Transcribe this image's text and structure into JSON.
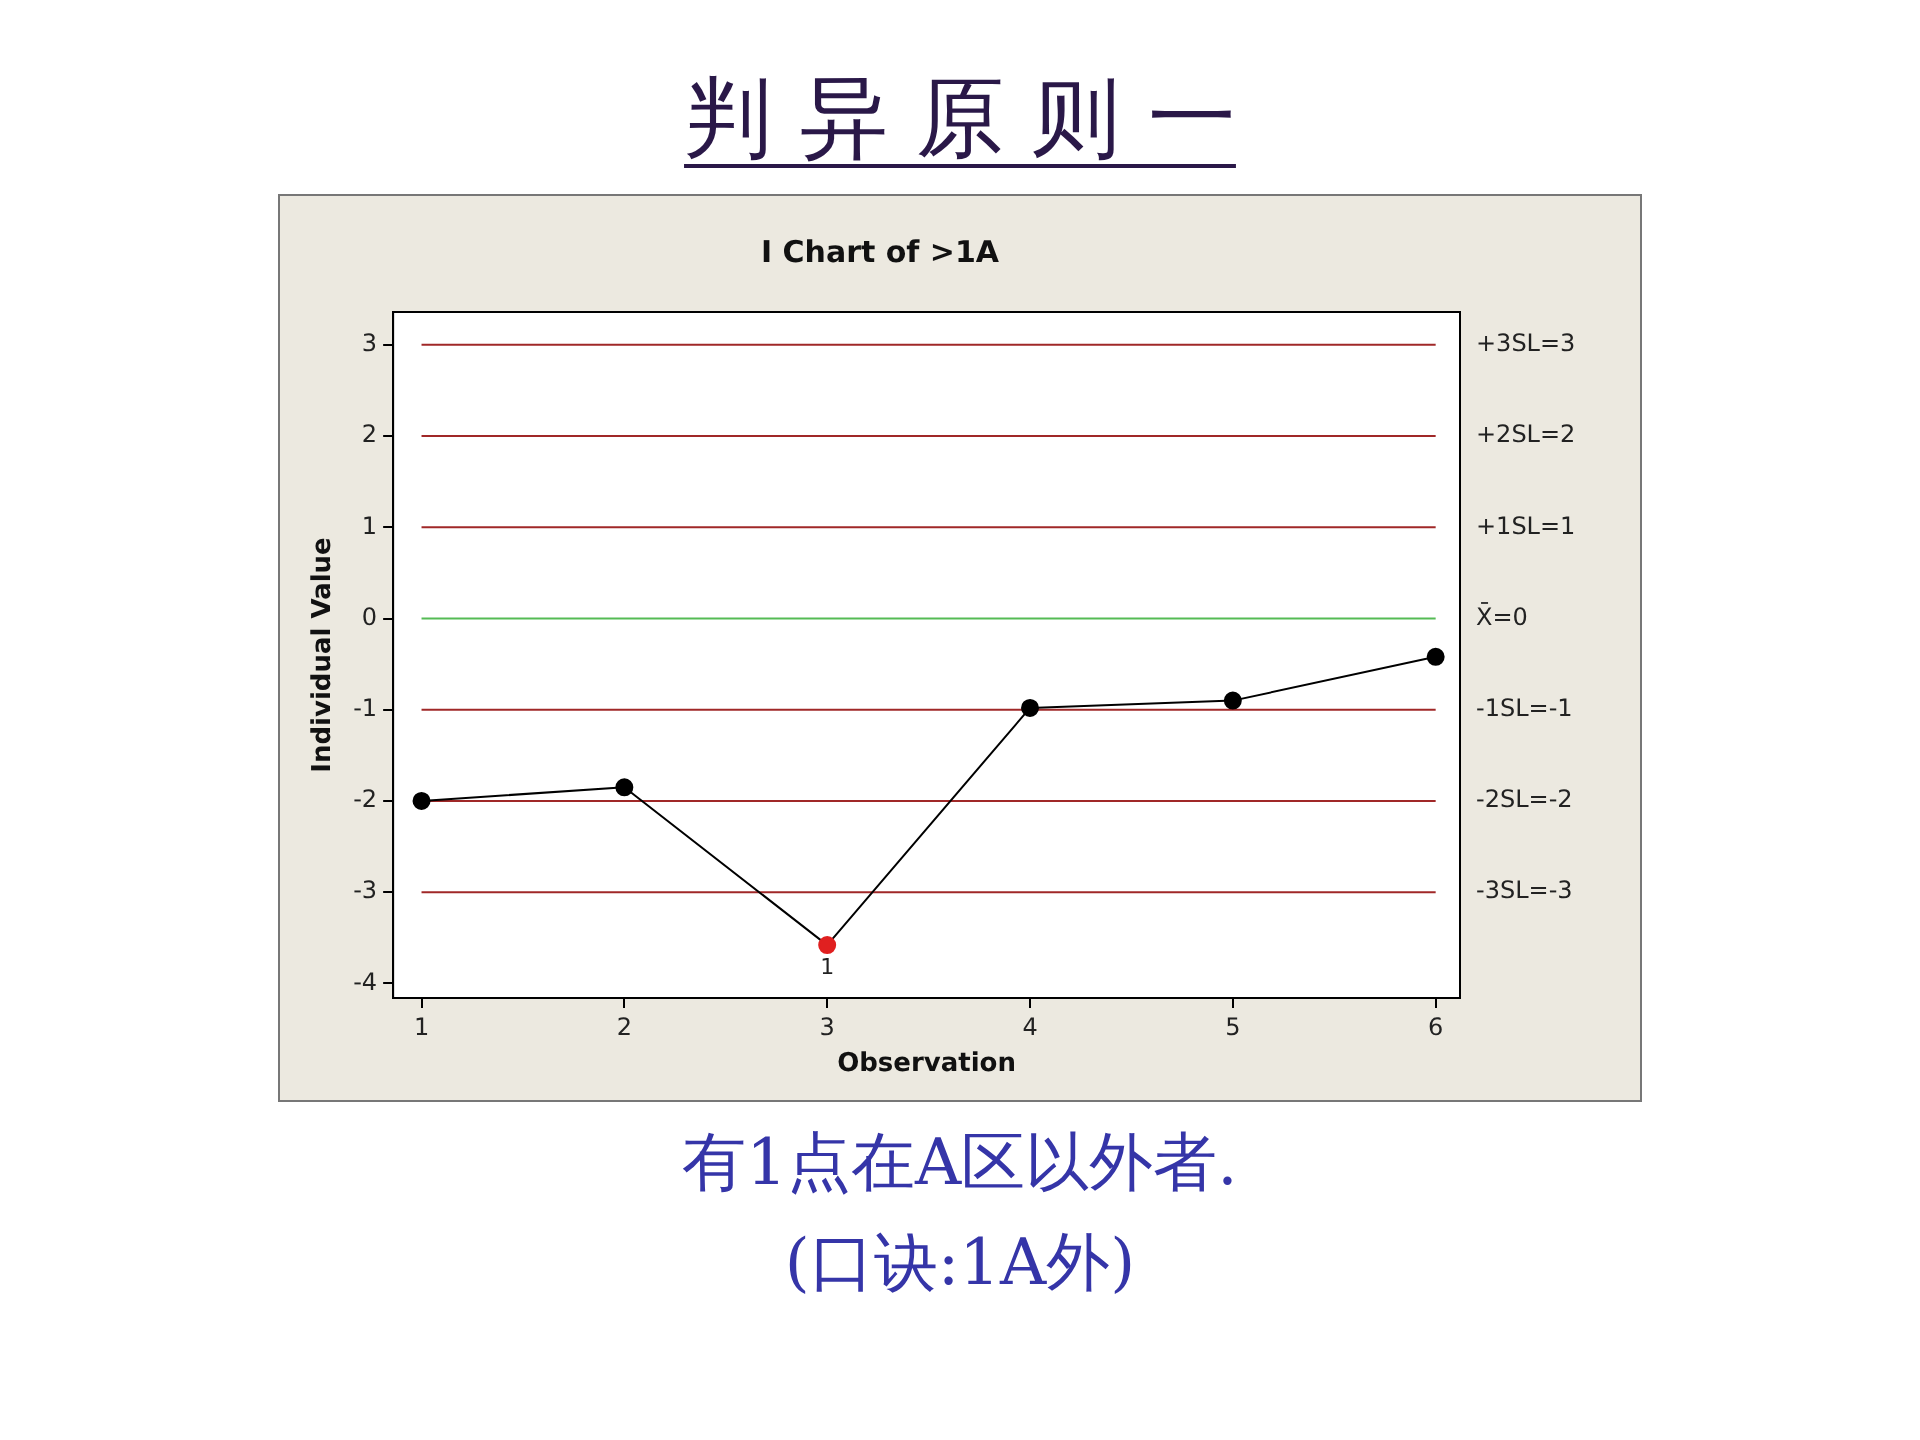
{
  "chart_data": {
    "type": "line",
    "title": "判 异 原 则 一",
    "subtitle": "I Chart of >1A",
    "xlabel": "Observation",
    "ylabel": "Individual Value",
    "x": [
      1,
      2,
      3,
      4,
      5,
      6
    ],
    "series": [
      {
        "color": "#000000",
        "colors": [
          "#000000",
          "#000000",
          "#e02020",
          "#000000",
          "#000000",
          "#000000"
        ],
        "values": [
          -2.0,
          -1.85,
          -3.58,
          -0.98,
          -0.9,
          -0.42
        ]
      }
    ],
    "xlim": [
      0.86,
      6.12
    ],
    "xticks": [
      1,
      2,
      3,
      4,
      5,
      6
    ],
    "ylim": [
      -4.16,
      3.36
    ],
    "yticks": [
      -4,
      -3,
      -2,
      -1,
      0,
      1,
      2,
      3
    ],
    "ref_lines": [
      {
        "axis": "y",
        "value": 3,
        "label": "+3SL=3",
        "color": "#a02828"
      },
      {
        "axis": "y",
        "value": 2,
        "label": "+2SL=2",
        "color": "#a02828"
      },
      {
        "axis": "y",
        "value": 1,
        "label": "+1SL=1",
        "color": "#a02828"
      },
      {
        "axis": "y",
        "value": 0,
        "label": "X̄=0",
        "color": "#55bb55"
      },
      {
        "axis": "y",
        "value": -1,
        "label": "-1SL=-1",
        "color": "#a02828"
      },
      {
        "axis": "y",
        "value": -2,
        "label": "-2SL=-2",
        "color": "#a02828"
      },
      {
        "axis": "y",
        "value": -3,
        "label": "-3SL=-3",
        "color": "#a02828"
      }
    ],
    "annotations": [
      {
        "text": "1",
        "x": 3,
        "y": -3.58
      },
      "有1点在A区以外者.",
      "(口诀:1A外)"
    ],
    "legend": false,
    "marker": "circle",
    "line_style": "solid"
  }
}
